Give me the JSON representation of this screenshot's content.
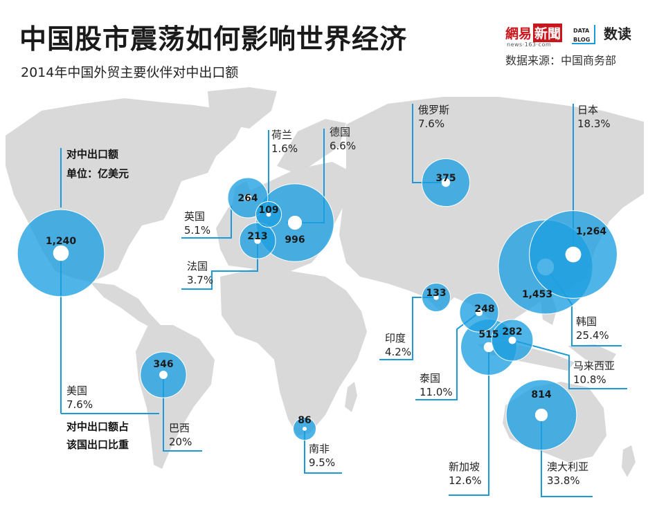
{
  "header": {
    "title": "中国股市震荡如何影响世界经济",
    "subtitle": "2014年中国外贸主要伙伴对中出口额",
    "source": "数据来源：中国商务部",
    "logo_netease_a": "網易",
    "logo_netease_b": "新聞",
    "logo_netease_url": "news·163·com",
    "logo_datablog_1": "DATA",
    "logo_datablog_2": "BLOG",
    "logo_shudu": "数读"
  },
  "colors": {
    "bubble": "#1d9fe0",
    "line": "#1a9bd7",
    "land": "#d9d9d9",
    "ocean": "#ffffff"
  },
  "chart_data": {
    "type": "bubble-map",
    "legend": {
      "size_title": "对中出口额",
      "size_unit": "单位：亿美元",
      "pct_title_1": "对中出口额占",
      "pct_title_2": "该国出口比重"
    },
    "series": [
      {
        "country": "美国",
        "export_to_china": "1,240",
        "value": 1240,
        "share_pct": "7.6%"
      },
      {
        "country": "英国",
        "export_to_china": "264",
        "value": 264,
        "share_pct": "5.1%"
      },
      {
        "country": "荷兰",
        "export_to_china": "109",
        "value": 109,
        "share_pct": "1.6%"
      },
      {
        "country": "德国",
        "export_to_china": "996",
        "value": 996,
        "share_pct": "6.6%"
      },
      {
        "country": "法国",
        "export_to_china": "213",
        "value": 213,
        "share_pct": "3.7%"
      },
      {
        "country": "俄罗斯",
        "export_to_china": "375",
        "value": 375,
        "share_pct": "7.6%"
      },
      {
        "country": "日本",
        "export_to_china": "1,264",
        "value": 1264,
        "share_pct": "18.3%"
      },
      {
        "country": "韩国",
        "export_to_china": "1,453",
        "value": 1453,
        "share_pct": "25.4%"
      },
      {
        "country": "印度",
        "export_to_china": "133",
        "value": 133,
        "share_pct": "4.2%"
      },
      {
        "country": "泰国",
        "export_to_china": "248",
        "value": 248,
        "share_pct": "11.0%"
      },
      {
        "country": "新加坡",
        "export_to_china": "515",
        "value": 515,
        "share_pct": "12.6%"
      },
      {
        "country": "马来西亚",
        "export_to_china": "282",
        "value": 282,
        "share_pct": "10.8%"
      },
      {
        "country": "澳大利亚",
        "export_to_china": "814",
        "value": 814,
        "share_pct": "33.8%"
      },
      {
        "country": "巴西",
        "export_to_china": "346",
        "value": 346,
        "share_pct": "20%"
      },
      {
        "country": "南非",
        "export_to_china": "86",
        "value": 86,
        "share_pct": "9.5%"
      }
    ]
  }
}
